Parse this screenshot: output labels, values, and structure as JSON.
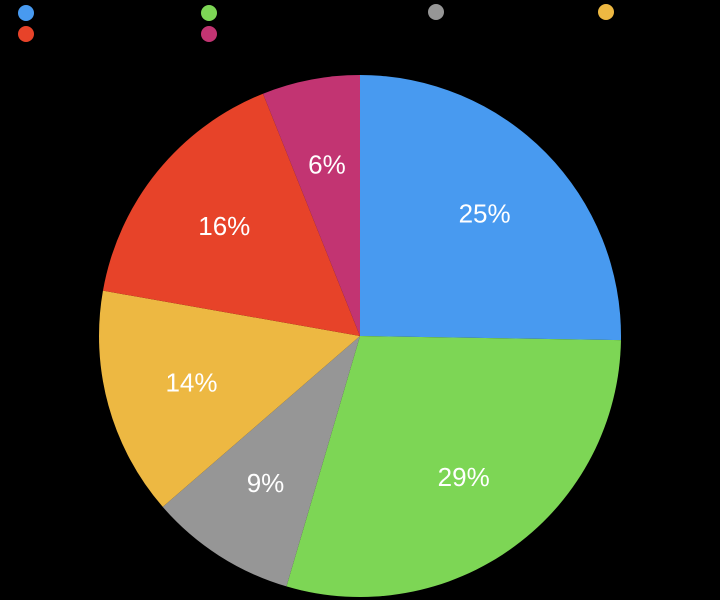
{
  "background_color": "#000000",
  "chart_data": {
    "type": "pie",
    "direction": "clockwise",
    "start_angle": "12-oclock",
    "label_color": "#FFFFFF",
    "label_font_size": 26,
    "slices": [
      {
        "value": 25,
        "display": "25%",
        "color": "#489AF0"
      },
      {
        "value": 29,
        "display": "29%",
        "color": "#7DD655"
      },
      {
        "value": 9,
        "display": "9%",
        "color": "#969696"
      },
      {
        "value": 14,
        "display": "14%",
        "color": "#EDB842"
      },
      {
        "value": 16,
        "display": "16%",
        "color": "#E74329"
      },
      {
        "value": 6,
        "display": "6%",
        "color": "#C23472"
      }
    ],
    "legend": {
      "position": "top",
      "rows": 2,
      "labels_visible": false,
      "items": [
        {
          "swatch_color": "#489AF0",
          "label": ""
        },
        {
          "swatch_color": "#7DD655",
          "label": ""
        },
        {
          "swatch_color": "#969696",
          "label": ""
        },
        {
          "swatch_color": "#EDB842",
          "label": ""
        },
        {
          "swatch_color": "#E74329",
          "label": ""
        },
        {
          "swatch_color": "#C23472",
          "label": ""
        }
      ]
    }
  }
}
